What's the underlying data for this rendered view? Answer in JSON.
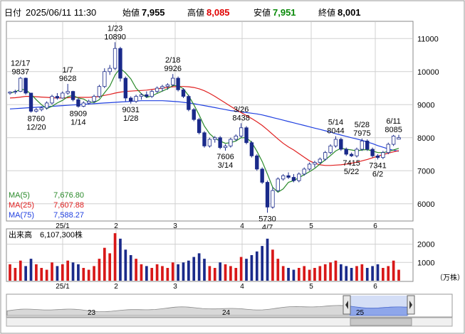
{
  "header": {
    "date_label": "日付",
    "datetime": "2025/06/11 11:30",
    "open_label": "始値",
    "open": "7,955",
    "high_label": "高値",
    "high": "8,085",
    "low_label": "安値",
    "low": "7,951",
    "close_label": "終値",
    "close": "8,001"
  },
  "colors": {
    "up": "#ffffff",
    "down": "#1a2a8a",
    "ma5": "#2a8a2a",
    "ma25": "#e02020",
    "ma75": "#2040e0",
    "grid": "#d0d0d0",
    "vol_up": "#d81818",
    "vol_down": "#1a2a8a",
    "high_color": "#e00000",
    "low_color": "#0a8a0a"
  },
  "legend": [
    {
      "label": "MA(5)",
      "value": "7,676.80",
      "color": "#2a8a2a"
    },
    {
      "label": "MA(25)",
      "value": "7,607.88",
      "color": "#e02020"
    },
    {
      "label": "MA(75)",
      "value": "7,588.27",
      "color": "#2040e0"
    }
  ],
  "volume_label": "出来高",
  "volume_value": "6,107,300株",
  "volume_unit": "（万株）",
  "navigator": {
    "labels": [
      "23",
      "24",
      "25"
    ]
  },
  "chart_data": {
    "type": "candlestick",
    "x_ticks": [
      "25/1",
      "2",
      "3",
      "4",
      "5",
      "6"
    ],
    "ylim": [
      5500,
      11500
    ],
    "yticks": [
      6000,
      7000,
      8000,
      9000,
      10000,
      11000
    ],
    "vol_ylim": [
      0,
      2800
    ],
    "vol_ticks": [
      1000,
      2000
    ],
    "candles": [
      [
        9350,
        9400,
        9300,
        9380
      ],
      [
        9380,
        9450,
        9320,
        9400
      ],
      [
        9400,
        9837,
        9380,
        9800
      ],
      [
        9800,
        9820,
        9300,
        9350
      ],
      [
        9350,
        9360,
        8760,
        8800
      ],
      [
        8800,
        8900,
        8760,
        8850
      ],
      [
        8850,
        8950,
        8800,
        8900
      ],
      [
        8900,
        9100,
        8850,
        9050
      ],
      [
        9050,
        9300,
        9000,
        9250
      ],
      [
        9250,
        9350,
        9150,
        9200
      ],
      [
        9200,
        9400,
        9180,
        9350
      ],
      [
        9350,
        9628,
        9300,
        9400
      ],
      [
        9400,
        9420,
        9100,
        9150
      ],
      [
        9150,
        9200,
        8909,
        8950
      ],
      [
        8950,
        9100,
        8920,
        9050
      ],
      [
        9050,
        9150,
        9000,
        9100
      ],
      [
        9100,
        9300,
        9050,
        9250
      ],
      [
        9250,
        9600,
        9200,
        9550
      ],
      [
        9550,
        10100,
        9500,
        10000
      ],
      [
        10000,
        10200,
        9900,
        10100
      ],
      [
        10100,
        10890,
        10050,
        10700
      ],
      [
        10700,
        10750,
        9700,
        9800
      ],
      [
        9800,
        9850,
        9100,
        9200
      ],
      [
        9200,
        9250,
        9031,
        9100
      ],
      [
        9100,
        9300,
        9050,
        9250
      ],
      [
        9250,
        9350,
        9150,
        9300
      ],
      [
        9300,
        9400,
        9200,
        9250
      ],
      [
        9250,
        9450,
        9200,
        9400
      ],
      [
        9400,
        9550,
        9350,
        9500
      ],
      [
        9500,
        9600,
        9400,
        9550
      ],
      [
        9550,
        9650,
        9450,
        9600
      ],
      [
        9600,
        9926,
        9550,
        9800
      ],
      [
        9800,
        9850,
        9400,
        9450
      ],
      [
        9450,
        9500,
        9200,
        9250
      ],
      [
        9250,
        9300,
        8800,
        8850
      ],
      [
        8850,
        8900,
        8500,
        8550
      ],
      [
        8550,
        8600,
        8100,
        8150
      ],
      [
        8150,
        8200,
        7700,
        7750
      ],
      [
        7750,
        8000,
        7700,
        7950
      ],
      [
        7950,
        8050,
        7850,
        8000
      ],
      [
        8000,
        8050,
        7650,
        7700
      ],
      [
        7700,
        7800,
        7606,
        7750
      ],
      [
        7750,
        8000,
        7700,
        7950
      ],
      [
        7950,
        8100,
        7900,
        8050
      ],
      [
        8050,
        8438,
        8000,
        8300
      ],
      [
        8300,
        8350,
        7800,
        7850
      ],
      [
        7850,
        7900,
        7400,
        7450
      ],
      [
        7450,
        7500,
        7000,
        7050
      ],
      [
        7050,
        7100,
        6600,
        6650
      ],
      [
        6650,
        6700,
        5730,
        5900
      ],
      [
        5900,
        6500,
        5850,
        6400
      ],
      [
        6400,
        6800,
        6350,
        6750
      ],
      [
        6750,
        6900,
        6700,
        6850
      ],
      [
        6850,
        6950,
        6750,
        6800
      ],
      [
        6800,
        6900,
        6650,
        6700
      ],
      [
        6700,
        6950,
        6650,
        6900
      ],
      [
        6900,
        7100,
        6850,
        7050
      ],
      [
        7050,
        7250,
        7000,
        7200
      ],
      [
        7200,
        7300,
        7100,
        7250
      ],
      [
        7250,
        7400,
        7200,
        7350
      ],
      [
        7350,
        7600,
        7300,
        7550
      ],
      [
        7550,
        7800,
        7500,
        7750
      ],
      [
        7750,
        8044,
        7700,
        7950
      ],
      [
        7950,
        8000,
        7600,
        7650
      ],
      [
        7650,
        7700,
        7450,
        7500
      ],
      [
        7500,
        7550,
        7415,
        7450
      ],
      [
        7450,
        7700,
        7400,
        7650
      ],
      [
        7650,
        7975,
        7600,
        7900
      ],
      [
        7900,
        7950,
        7600,
        7650
      ],
      [
        7650,
        7700,
        7400,
        7450
      ],
      [
        7450,
        7500,
        7341,
        7400
      ],
      [
        7400,
        7600,
        7350,
        7550
      ],
      [
        7550,
        7850,
        7500,
        7800
      ],
      [
        7800,
        8085,
        7750,
        8050
      ],
      [
        7955,
        8085,
        7951,
        8001
      ]
    ],
    "volume": [
      900,
      700,
      1100,
      800,
      1200,
      900,
      700,
      600,
      1000,
      800,
      900,
      1100,
      1000,
      900,
      700,
      600,
      800,
      1200,
      1800,
      1500,
      2600,
      2300,
      1700,
      1400,
      1200,
      900,
      800,
      700,
      900,
      800,
      700,
      1000,
      900,
      1000,
      1100,
      1300,
      1500,
      1200,
      800,
      700,
      1000,
      900,
      800,
      700,
      1300,
      1200,
      1400,
      1600,
      1900,
      2300,
      1700,
      1200,
      800,
      700,
      600,
      700,
      800,
      600,
      700,
      800,
      900,
      1000,
      1100,
      900,
      800,
      700,
      800,
      900,
      700,
      800,
      900,
      700,
      800,
      1100,
      600
    ],
    "ma5": [
      9350,
      9390,
      9460,
      9450,
      9320,
      9150,
      9000,
      8880,
      8950,
      9050,
      9130,
      9240,
      9280,
      9200,
      9170,
      9080,
      9060,
      9150,
      9360,
      9560,
      9900,
      10100,
      9960,
      9780,
      9500,
      9330,
      9220,
      9260,
      9340,
      9410,
      9480,
      9580,
      9570,
      9480,
      9270,
      9000,
      8690,
      8350,
      8120,
      7980,
      7900,
      7830,
      7850,
      7900,
      8000,
      8000,
      7860,
      7590,
      7280,
      6900,
      6500,
      6350,
      6450,
      6650,
      6700,
      6790,
      6880,
      6970,
      7070,
      7200,
      7330,
      7460,
      7600,
      7680,
      7650,
      7630,
      7600,
      7630,
      7640,
      7600,
      7550,
      7550,
      7580,
      7630,
      7677
    ],
    "ma25": [
      9200,
      9210,
      9230,
      9250,
      9250,
      9240,
      9230,
      9220,
      9210,
      9200,
      9200,
      9210,
      9220,
      9220,
      9220,
      9220,
      9230,
      9250,
      9280,
      9310,
      9350,
      9380,
      9400,
      9410,
      9420,
      9430,
      9440,
      9460,
      9480,
      9500,
      9520,
      9540,
      9550,
      9550,
      9540,
      9520,
      9480,
      9420,
      9340,
      9250,
      9150,
      9050,
      8950,
      8850,
      8760,
      8670,
      8580,
      8480,
      8370,
      8240,
      8100,
      7960,
      7830,
      7720,
      7630,
      7520,
      7410,
      7300,
      7230,
      7180,
      7160,
      7160,
      7170,
      7180,
      7200,
      7230,
      7260,
      7300,
      7340,
      7390,
      7440,
      7490,
      7530,
      7570,
      7608
    ],
    "ma75": [
      8870,
      8880,
      8890,
      8900,
      8910,
      8920,
      8930,
      8940,
      8950,
      8960,
      8970,
      8980,
      8990,
      9000,
      9010,
      9020,
      9030,
      9040,
      9050,
      9060,
      9070,
      9080,
      9090,
      9100,
      9110,
      9120,
      9120,
      9120,
      9120,
      9120,
      9110,
      9100,
      9090,
      9070,
      9050,
      9030,
      9000,
      8970,
      8940,
      8910,
      8880,
      8850,
      8820,
      8800,
      8780,
      8760,
      8740,
      8720,
      8690,
      8650,
      8610,
      8570,
      8530,
      8490,
      8450,
      8410,
      8370,
      8330,
      8290,
      8250,
      8210,
      8170,
      8120,
      8080,
      8040,
      8000,
      7960,
      7920,
      7870,
      7820,
      7760,
      7710,
      7660,
      7620,
      7588
    ],
    "annotations": [
      {
        "i": 2,
        "value": "12/17\n9837",
        "pos": "above"
      },
      {
        "i": 5,
        "value": "8760\n12/20",
        "pos": "below"
      },
      {
        "i": 11,
        "value": "1/7\n9628",
        "pos": "above"
      },
      {
        "i": 13,
        "value": "8909\n1/14",
        "pos": "below"
      },
      {
        "i": 20,
        "value": "1/23\n10890",
        "pos": "above"
      },
      {
        "i": 23,
        "value": "9031\n1/28",
        "pos": "below"
      },
      {
        "i": 31,
        "value": "2/18\n9926",
        "pos": "above"
      },
      {
        "i": 41,
        "value": "7606\n3/14",
        "pos": "below"
      },
      {
        "i": 44,
        "value": "3/26\n8438",
        "pos": "above"
      },
      {
        "i": 49,
        "value": "5730\n4/7",
        "pos": "below"
      },
      {
        "i": 62,
        "value": "5/14\n8044",
        "pos": "above"
      },
      {
        "i": 65,
        "value": "7415\n5/22",
        "pos": "below"
      },
      {
        "i": 67,
        "value": "5/28\n7975",
        "pos": "above"
      },
      {
        "i": 70,
        "value": "7341\n6/2",
        "pos": "below"
      },
      {
        "i": 73,
        "value": "6/11\n8085",
        "pos": "above"
      }
    ]
  }
}
